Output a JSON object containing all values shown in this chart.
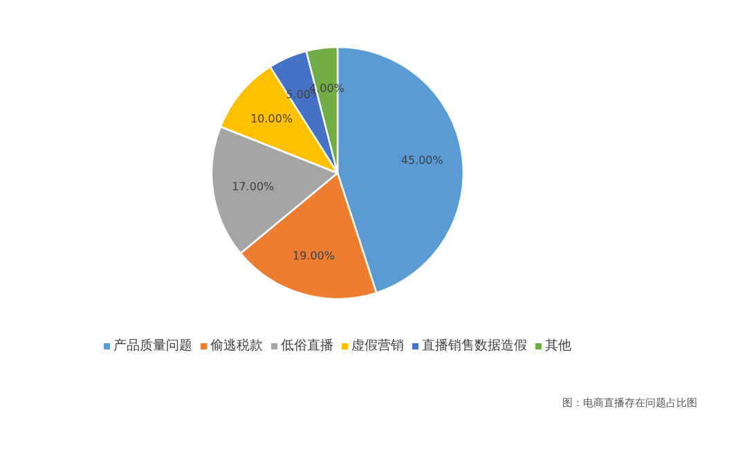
{
  "chart_data": {
    "type": "pie",
    "categories": [
      "产品质量问题",
      "偷逃税款",
      "低俗直播",
      "虚假营销",
      "直播销售数据造假",
      "其他"
    ],
    "values": [
      45,
      19,
      17,
      10,
      5,
      4
    ],
    "colors": [
      "#5b9bd5",
      "#ed7d31",
      "#a5a5a5",
      "#ffc000",
      "#4472c4",
      "#70ad47"
    ],
    "value_labels": [
      "45.00%",
      "19.00%",
      "17.00%",
      "10.00%",
      "5.00%",
      "4.00%"
    ],
    "legend": "bottom",
    "annotations": [
      "图：电商直播存在问题占比图"
    ]
  }
}
